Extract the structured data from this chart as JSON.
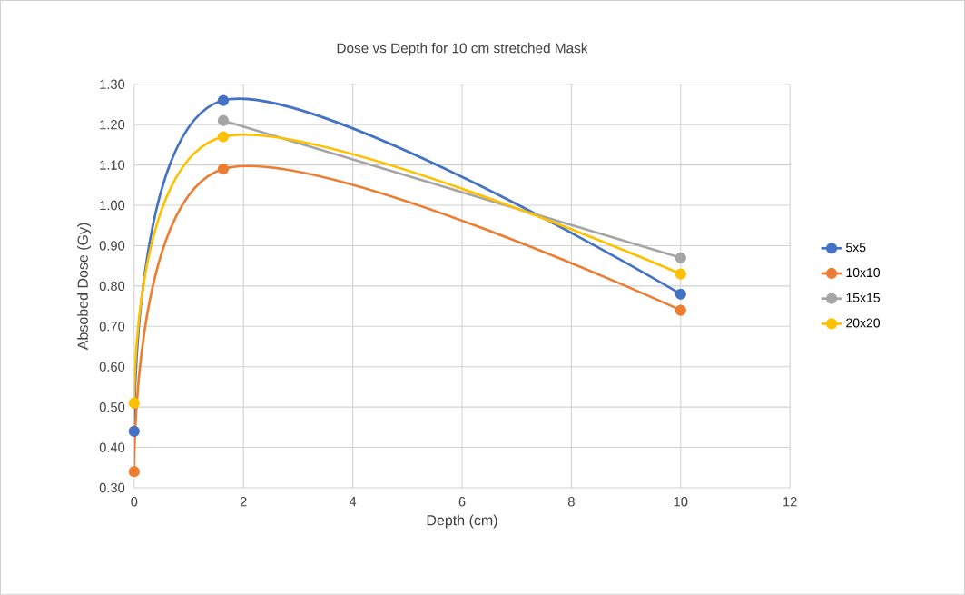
{
  "chart_data": {
    "type": "line",
    "title": "Dose vs Depth for 10 cm stretched Mask",
    "xlabel": "Depth (cm)",
    "ylabel": "Absobed Dose (Gy)",
    "x": [
      0,
      1.63,
      10
    ],
    "series": [
      {
        "name": "5x5",
        "color": "#4472c4",
        "values": [
          0.44,
          1.26,
          0.78
        ]
      },
      {
        "name": "10x10",
        "color": "#ed7d31",
        "values": [
          0.34,
          1.09,
          0.74
        ]
      },
      {
        "name": "15x15",
        "color": "#a5a5a5",
        "values": [
          null,
          1.21,
          0.87
        ]
      },
      {
        "name": "20x20",
        "color": "#ffc000",
        "values": [
          0.51,
          1.17,
          0.83
        ]
      }
    ],
    "xlim": [
      0,
      12
    ],
    "xticks": [
      0,
      2,
      4,
      6,
      8,
      10,
      12
    ],
    "ylim": [
      0.3,
      1.3
    ],
    "yticks": [
      {
        "value": 0.3,
        "label": "0.30"
      },
      {
        "value": 0.4,
        "label": "0.40"
      },
      {
        "value": 0.5,
        "label": "0.50"
      },
      {
        "value": 0.6,
        "label": "0.60"
      },
      {
        "value": 0.7,
        "label": "0.70"
      },
      {
        "value": 0.8,
        "label": "0.80"
      },
      {
        "value": 0.9,
        "label": "0.90"
      },
      {
        "value": 1.0,
        "label": "1.00"
      },
      {
        "value": 1.1,
        "label": "1.10"
      },
      {
        "value": 1.2,
        "label": "1.20"
      },
      {
        "value": 1.3,
        "label": "1.30"
      }
    ],
    "grid": true,
    "legend": "right",
    "marker": "circle",
    "line_style": "solid"
  }
}
